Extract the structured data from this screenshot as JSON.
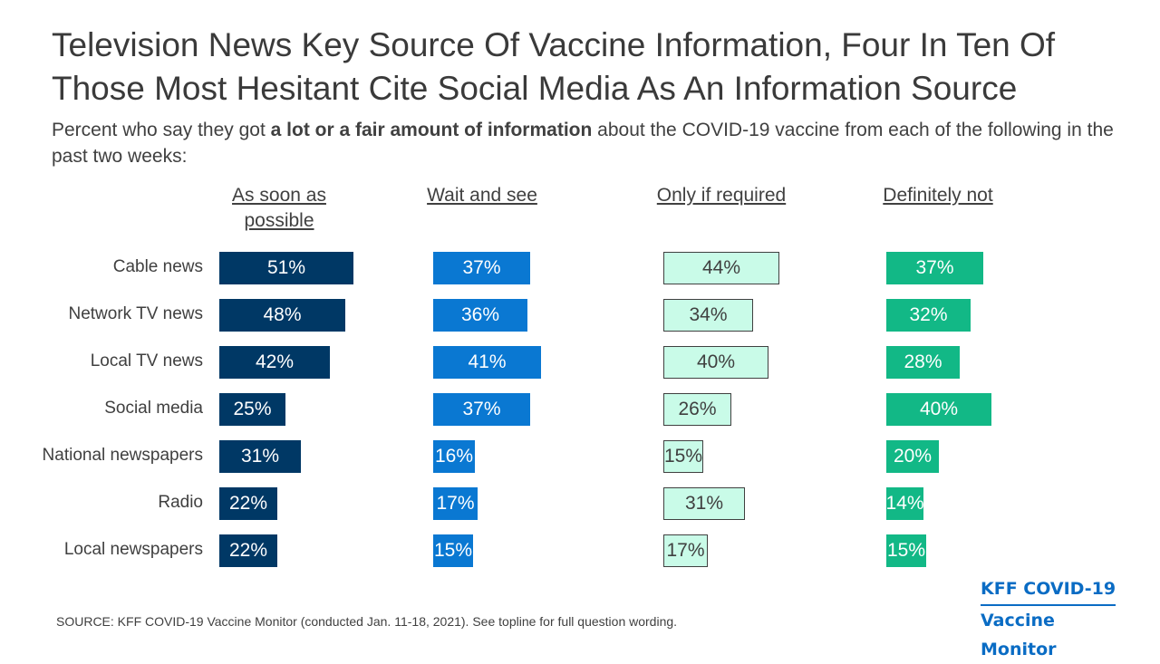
{
  "title": "Television News Key Source Of Vaccine Information, Four In Ten Of Those Most Hesitant Cite Social Media As An Information Source",
  "subtitle": {
    "before": "Percent who say they got ",
    "bold": "a lot or a fair amount of information",
    "after": " about the COVID-19 vaccine from each of the following in the past two weeks:"
  },
  "source": "SOURCE: KFF COVID-19 Vaccine Monitor (conducted Jan. 11-18, 2021). See topline for full question wording.",
  "brand": {
    "line1": "KFF COVID-19",
    "line2": "Vaccine Monitor"
  },
  "chart_data": {
    "type": "bar",
    "categories": [
      "Cable news",
      "Network TV news",
      "Local TV news",
      "Social media",
      "National newspapers",
      "Radio",
      "Local newspapers"
    ],
    "series": [
      {
        "name": "As soon as possible",
        "values": [
          51,
          48,
          42,
          25,
          31,
          22,
          22
        ],
        "labels": [
          "51%",
          "48%",
          "42%",
          "25%",
          "31%",
          "22%",
          "22%"
        ],
        "color": "#003865",
        "text_color": "#ffffff"
      },
      {
        "name": "Wait and see",
        "values": [
          37,
          36,
          41,
          37,
          16,
          17,
          15
        ],
        "labels": [
          "37%",
          "36%",
          "41%",
          "37%",
          "16%",
          "17%",
          "15%"
        ],
        "color": "#0a78d2",
        "text_color": "#ffffff"
      },
      {
        "name": "Only if required",
        "values": [
          44,
          34,
          40,
          26,
          15,
          31,
          17
        ],
        "labels": [
          "44%",
          "34%",
          "40%",
          "26%",
          "15%",
          "31%",
          "17%"
        ],
        "color": "#c9fbe8",
        "text_color": "#404040"
      },
      {
        "name": "Definitely not",
        "values": [
          37,
          32,
          28,
          40,
          20,
          14,
          15
        ],
        "labels": [
          "37%",
          "32%",
          "28%",
          "40%",
          "20%",
          "14%",
          "15%"
        ],
        "color": "#12b886",
        "text_color": "#ffffff"
      }
    ],
    "unit": "%"
  }
}
